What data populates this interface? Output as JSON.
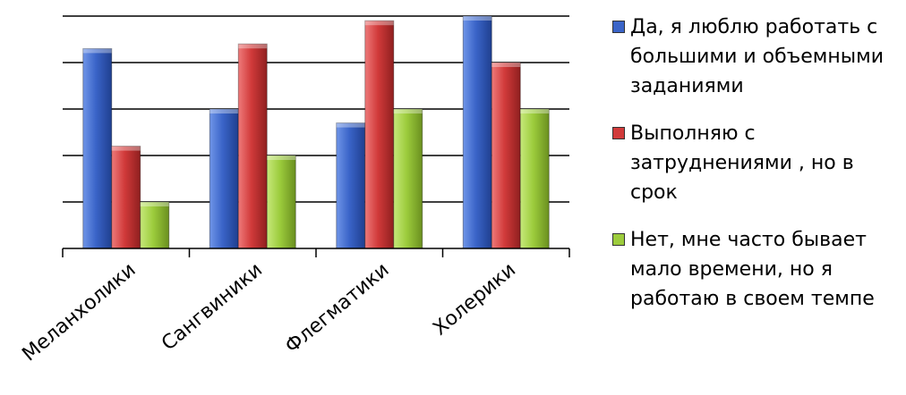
{
  "chart_data": {
    "type": "bar",
    "categories": [
      "Меланхолики",
      "Сангвиники",
      "Флегматики",
      "Холерики"
    ],
    "series": [
      {
        "name": "Да, я люблю работать с большими и объемными заданиями",
        "color": "#3a64c8",
        "values": [
          4.3,
          3.0,
          2.7,
          5.0
        ]
      },
      {
        "name": "Выполняю с затруднениями , но в срок",
        "color": "#d13a3a",
        "values": [
          2.2,
          4.4,
          4.9,
          4.0
        ]
      },
      {
        "name": "Нет, мне часто бывает мало времени, но я работаю в своем темпе",
        "color": "#9ccc3c",
        "values": [
          1.0,
          2.0,
          3.0,
          3.0
        ]
      }
    ],
    "ylim": [
      0,
      5
    ],
    "grid": true,
    "legend_position": "right"
  }
}
